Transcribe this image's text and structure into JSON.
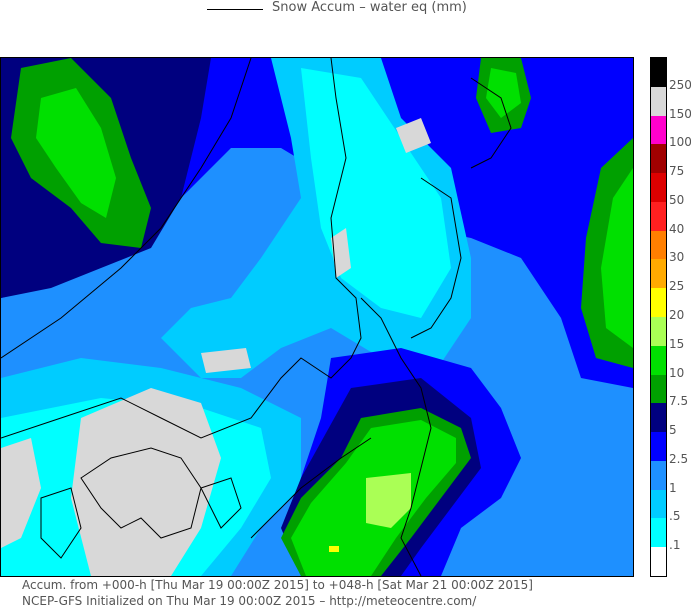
{
  "header": {
    "title": "Snow Accum – water eq (mm)"
  },
  "colorbar": {
    "labels": [
      "250",
      "150",
      "100",
      "75",
      "50",
      "40",
      "30",
      "25",
      "20",
      "15",
      "10",
      "7.5",
      "5",
      "2.5",
      "1",
      ".5",
      ".1"
    ],
    "colors": [
      "#000000",
      "#d8d8d8",
      "#ff00cc",
      "#a00000",
      "#dd0000",
      "#ff2020",
      "#ff7f00",
      "#ffaa00",
      "#ffff00",
      "#aaff55",
      "#00e000",
      "#00a000",
      "#00007f",
      "#0000ff",
      "#1e90ff",
      "#00ccff",
      "#00ffff",
      "#ffffff"
    ]
  },
  "map": {
    "fill_colors": {
      "none": "#ffffff",
      "trace": "#d8d8d8",
      "light_cyan": "#00ffff",
      "cyan": "#00ccff",
      "light_blue": "#1e90ff",
      "blue": "#0000ff",
      "dark_blue": "#00007f",
      "dark_green": "#00a000",
      "green": "#00e000",
      "light_green": "#aaff55",
      "yellow": "#ffff00"
    }
  },
  "footer": {
    "line1": "Accum. from +000-h [Thu Mar 19 00:00Z 2015] to +048-h [Sat Mar 21 00:00Z 2015]",
    "line2": "NCEP-GFS Initialized on Thu Mar 19 00:00Z 2015 – http://meteocentre.com/"
  }
}
